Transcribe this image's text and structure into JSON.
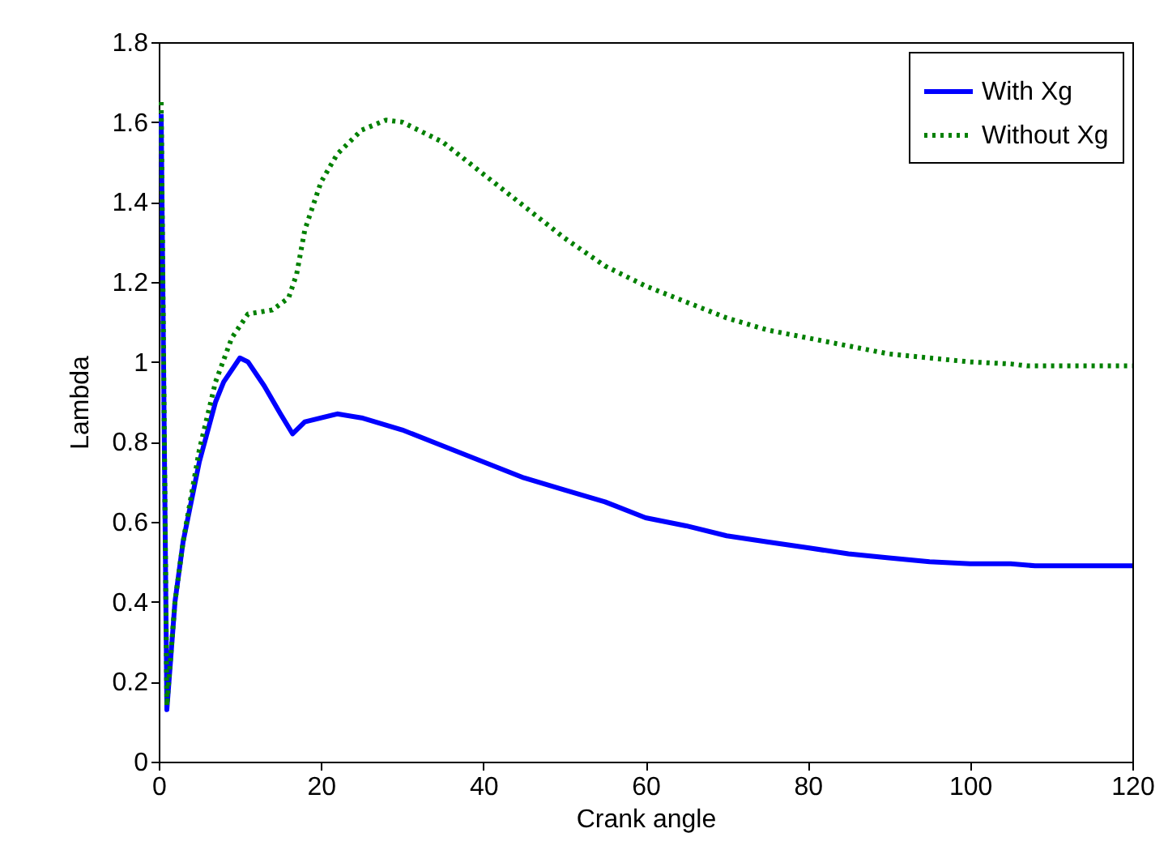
{
  "chart_data": {
    "type": "line",
    "xlabel": "Crank angle",
    "ylabel": "Lambda",
    "xlim": [
      0,
      120
    ],
    "xticks": [
      0,
      20,
      40,
      60,
      80,
      100,
      120
    ],
    "ylim": [
      0,
      1.8
    ],
    "yticks": [
      0,
      0.2,
      0.4,
      0.6,
      0.8,
      1,
      1.2,
      1.4,
      1.6,
      1.8
    ],
    "grid": false,
    "legend": "top right",
    "marker": "none",
    "series": [
      {
        "name": "With Xg",
        "color": "#0000ff",
        "line_style": "solid",
        "x": [
          0.3,
          1,
          2,
          3,
          5,
          7,
          8,
          10,
          11,
          13,
          15,
          16.5,
          18,
          22,
          25,
          30,
          35,
          40,
          45,
          50,
          55,
          60,
          65,
          70,
          75,
          80,
          85,
          90,
          95,
          100,
          105,
          108,
          120
        ],
        "values": [
          1.62,
          0.13,
          0.4,
          0.55,
          0.75,
          0.9,
          0.95,
          1.01,
          1.0,
          0.94,
          0.87,
          0.82,
          0.85,
          0.87,
          0.86,
          0.83,
          0.79,
          0.75,
          0.71,
          0.68,
          0.65,
          0.61,
          0.59,
          0.565,
          0.55,
          0.535,
          0.52,
          0.51,
          0.5,
          0.495,
          0.495,
          0.49,
          0.49
        ]
      },
      {
        "name": "Without Xg",
        "color": "#008000",
        "line_style": "dotted",
        "x": [
          0.3,
          1,
          2,
          3,
          5,
          7,
          9,
          11,
          14,
          16,
          17,
          18,
          20,
          22,
          25,
          28,
          30,
          35,
          40,
          45,
          50,
          55,
          60,
          65,
          70,
          75,
          80,
          85,
          90,
          95,
          100,
          105,
          107,
          120
        ],
        "values": [
          1.65,
          0.14,
          0.4,
          0.55,
          0.78,
          0.95,
          1.06,
          1.12,
          1.13,
          1.16,
          1.22,
          1.33,
          1.45,
          1.52,
          1.58,
          1.605,
          1.6,
          1.55,
          1.47,
          1.39,
          1.31,
          1.24,
          1.19,
          1.15,
          1.11,
          1.08,
          1.06,
          1.04,
          1.02,
          1.01,
          1.0,
          0.995,
          0.99,
          0.99
        ]
      }
    ]
  }
}
